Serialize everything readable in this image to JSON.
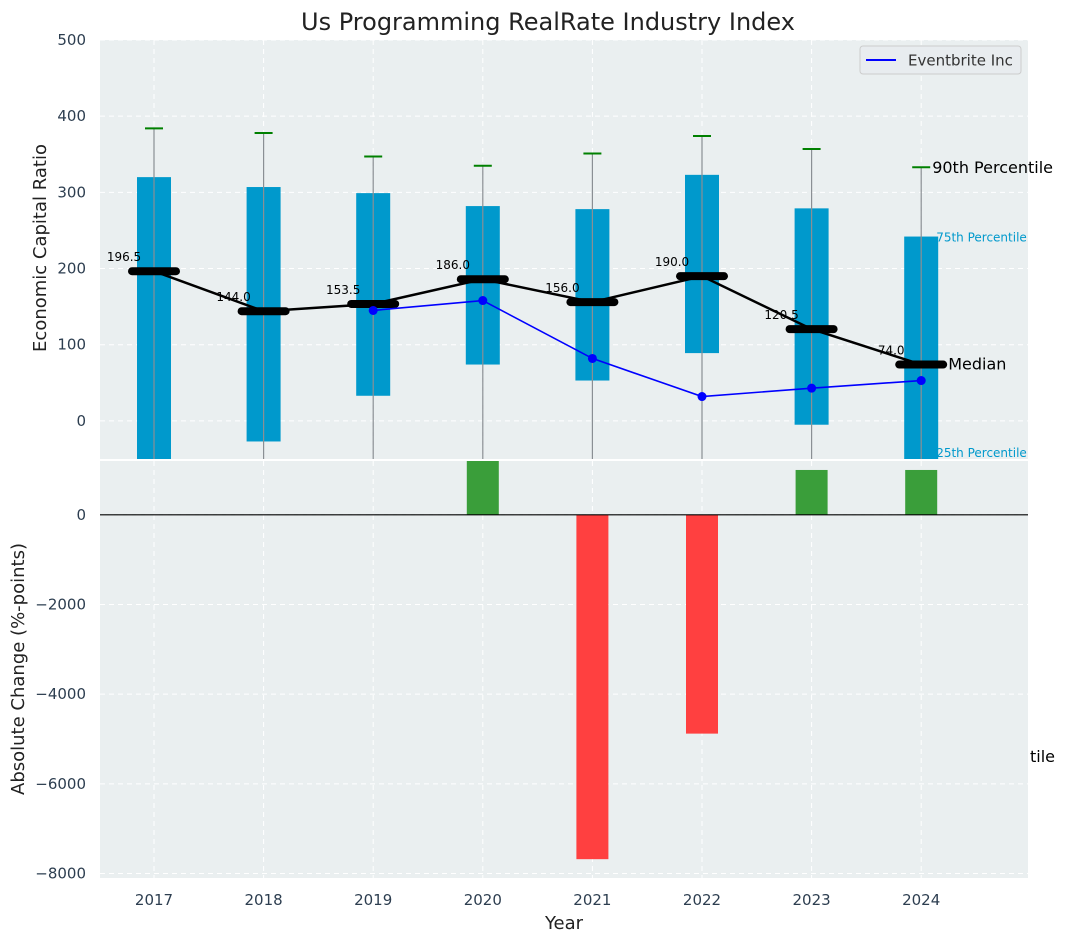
{
  "chart_data": [
    {
      "type": "bar",
      "title": "Us Programming RealRate Industry Index",
      "xlabel": "",
      "ylabel": "Economic Capital Ratio",
      "ylim": [
        -50,
        500
      ],
      "yticks": [
        0,
        100,
        200,
        300,
        400,
        500
      ],
      "grid": true,
      "legend_position": "top-right",
      "categories": [
        "2017",
        "2018",
        "2019",
        "2020",
        "2021",
        "2022",
        "2023",
        "2024"
      ],
      "series": [
        {
          "name": "",
          "kind": "percentile-band",
          "p25": [
            -50,
            -27,
            33,
            74,
            53,
            89,
            -5,
            -50
          ],
          "p75": [
            320,
            307,
            299,
            282,
            278,
            323,
            279,
            242
          ],
          "p90": [
            384,
            378,
            347,
            335,
            351,
            374,
            357,
            333
          ],
          "color": "#0099cc"
        },
        {
          "name": "",
          "kind": "median",
          "values": [
            196.5,
            144.0,
            153.5,
            186.0,
            156.0,
            190.0,
            120.5,
            74.0
          ],
          "value_labels": [
            "196.5",
            "144.0",
            "153.5",
            "186.0",
            "156.0",
            "190.0",
            "120.5",
            "74.0"
          ],
          "color": "#000000"
        },
        {
          "name": "Eventbrite Inc",
          "kind": "company",
          "x": [
            "2019",
            "2020",
            "2021",
            "2022",
            "2023",
            "2024"
          ],
          "values": [
            145,
            158,
            82,
            32,
            43,
            53
          ],
          "color": "#0000ff"
        }
      ],
      "annotations": {
        "p90": "90th Percentile",
        "p75": "75th Percentile",
        "median": "Median",
        "p25": "25th Percentile"
      },
      "annotation_colors": {
        "p90": "#000000",
        "p75": "#0099cc",
        "median": "#000000",
        "p25": "#0099cc"
      }
    },
    {
      "type": "bar",
      "title": "",
      "xlabel": "Year",
      "ylabel": "Absolute Change (%-points)",
      "ylim": [
        -8100,
        1200
      ],
      "yticks": [
        -8000,
        -6000,
        -4000,
        -2000,
        0
      ],
      "grid": true,
      "categories": [
        "2017",
        "2018",
        "2019",
        "2020",
        "2021",
        "2022",
        "2023",
        "2024"
      ],
      "values": [
        null,
        null,
        null,
        1200,
        -7680,
        -4880,
        1000,
        1000
      ],
      "positive_color": "#3a9e3a",
      "negative_color": "#ff4040",
      "overflow_label": "tile"
    }
  ]
}
